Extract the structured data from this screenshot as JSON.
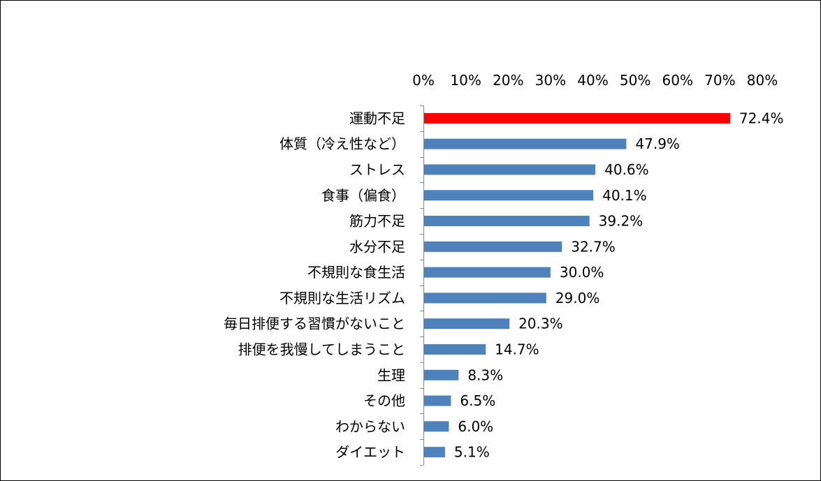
{
  "chart_data": {
    "type": "bar",
    "orientation": "horizontal",
    "title": "",
    "xlabel": "",
    "ylabel": "",
    "xlim": [
      0,
      80
    ],
    "x_ticks": [
      "0%",
      "10%",
      "20%",
      "30%",
      "40%",
      "50%",
      "60%",
      "70%",
      "80%"
    ],
    "x_axis_position": "top",
    "grid": false,
    "legend": "none",
    "categories": [
      "運動不足",
      "体質（冷え性など）",
      "ストレス",
      "食事（偏食）",
      "筋力不足",
      "水分不足",
      "不規則な食生活",
      "不規則な生活リズム",
      "毎日排便する習慣がないこと",
      "排便を我慢してしまうこと",
      "生理",
      "その他",
      "わからない",
      "ダイエット"
    ],
    "values": [
      72.4,
      47.9,
      40.6,
      40.1,
      39.2,
      32.7,
      30.0,
      29.0,
      20.3,
      14.7,
      8.3,
      6.5,
      6.0,
      5.1
    ],
    "value_labels": [
      "72.4%",
      "47.9%",
      "40.6%",
      "40.1%",
      "39.2%",
      "32.7%",
      "30.0%",
      "29.0%",
      "20.3%",
      "14.7%",
      "8.3%",
      "6.5%",
      "6.0%",
      "5.1%"
    ],
    "colors": {
      "default_bar": "#4f81bd",
      "highlight_bar": "#ff0000",
      "axis": "#868686",
      "text": "#000000"
    },
    "highlight_index": 0
  }
}
